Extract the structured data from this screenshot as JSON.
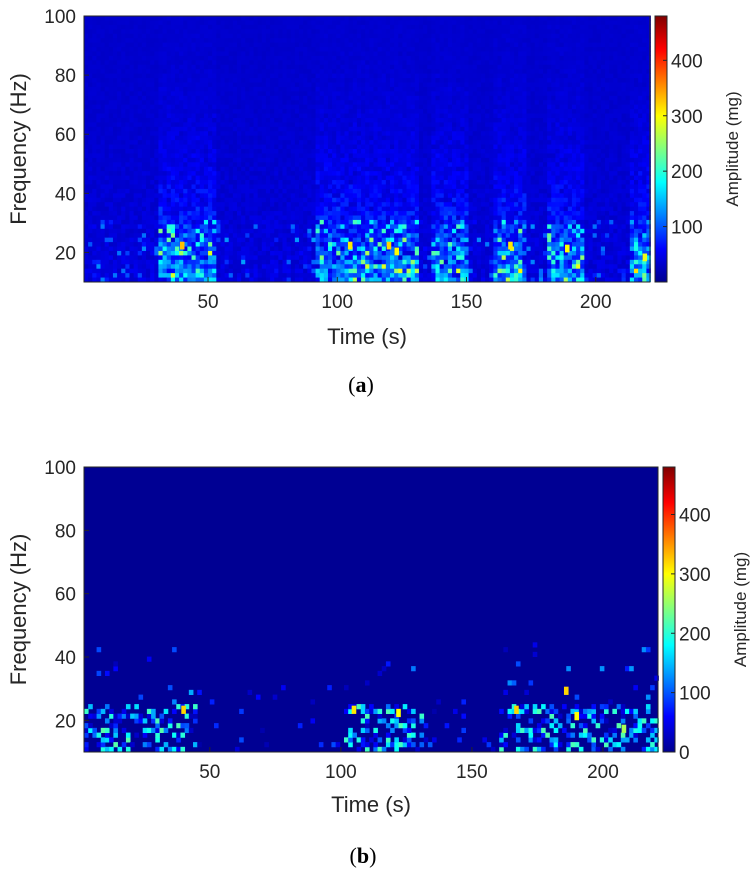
{
  "colormap": [
    "#00008F",
    "#0000FF",
    "#0080FF",
    "#00FFFF",
    "#80FF80",
    "#FFFF00",
    "#FF8000",
    "#FF0000",
    "#800000"
  ],
  "chart_data": [
    {
      "type": "heatmap",
      "caption": "a",
      "xlabel": "Time (s)",
      "ylabel": "Frequency (Hz)",
      "xlim": [
        2,
        221
      ],
      "ylim": [
        10,
        100
      ],
      "xticks": [
        50,
        100,
        150,
        200
      ],
      "yticks": [
        20,
        40,
        60,
        80,
        100
      ],
      "colorbar": {
        "label": "Amplitude (mg)",
        "range": [
          0,
          480
        ],
        "ticks": [
          100,
          200,
          300,
          400
        ]
      },
      "baseline_amplitude": 30,
      "low_band_hz": 30,
      "active_intervals_s": [
        [
          30,
          45
        ],
        [
          45,
          52
        ],
        [
          90,
          130
        ],
        [
          135,
          150
        ],
        [
          160,
          172
        ],
        [
          180,
          195
        ],
        [
          212,
          221
        ]
      ],
      "hotspots": [
        {
          "t": 40,
          "f": 22,
          "amp": 330
        },
        {
          "t": 105,
          "f": 22,
          "amp": 310
        },
        {
          "t": 120,
          "f": 22,
          "amp": 320
        },
        {
          "t": 123,
          "f": 20,
          "amp": 300
        },
        {
          "t": 167,
          "f": 22,
          "amp": 310
        },
        {
          "t": 189,
          "f": 21,
          "amp": 300
        },
        {
          "t": 219,
          "f": 18,
          "amp": 290
        }
      ]
    },
    {
      "type": "heatmap",
      "caption": "b",
      "xlabel": "Time (s)",
      "ylabel": "Frequency (Hz)",
      "xlim": [
        2,
        221
      ],
      "ylim": [
        10,
        100
      ],
      "xticks": [
        50,
        100,
        150,
        200
      ],
      "yticks": [
        20,
        40,
        60,
        80,
        100
      ],
      "colorbar": {
        "label": "Amplitude (mg)",
        "range": [
          0,
          480
        ],
        "ticks": [
          0,
          100,
          200,
          300,
          400
        ]
      },
      "baseline_amplitude": 2,
      "low_band_hz": 24,
      "active_intervals_s": [
        [
          2,
          45
        ],
        [
          100,
          130
        ],
        [
          160,
          221
        ]
      ],
      "hotspots": [
        {
          "t": 40,
          "f": 23,
          "amp": 320
        },
        {
          "t": 105,
          "f": 23,
          "amp": 310
        },
        {
          "t": 122,
          "f": 22,
          "amp": 300
        },
        {
          "t": 167,
          "f": 23,
          "amp": 320
        },
        {
          "t": 186,
          "f": 29,
          "amp": 320
        },
        {
          "t": 190,
          "f": 21,
          "amp": 300
        },
        {
          "t": 208,
          "f": 17,
          "amp": 260
        }
      ]
    }
  ]
}
